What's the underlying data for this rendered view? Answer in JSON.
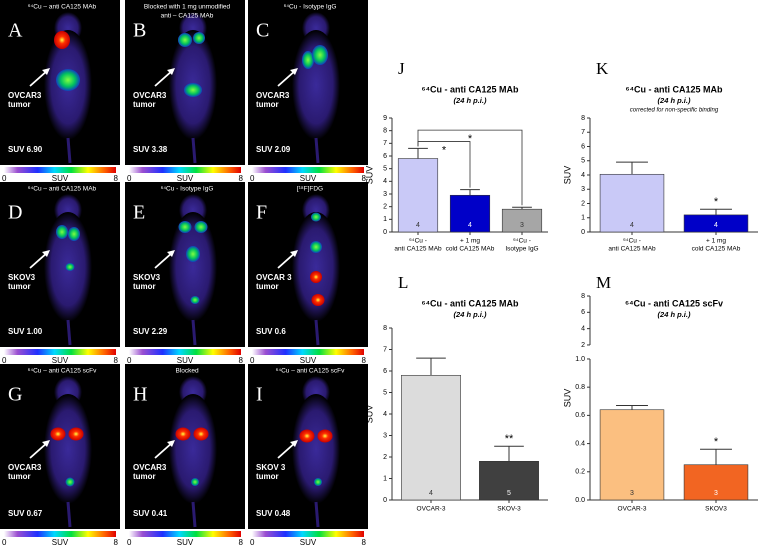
{
  "colorbar": {
    "min": 0,
    "label": "SUV",
    "max": 8
  },
  "panels": [
    {
      "letter": "A",
      "title": [
        "⁶⁴Cu – anti CA125 MAb"
      ],
      "tumor": [
        "OVCAR3",
        "tumor"
      ],
      "suv": "SUV 6.90"
    },
    {
      "letter": "B",
      "title": [
        "Blocked with 1 mg unmodified",
        "anti – CA125 MAb"
      ],
      "tumor": [
        "OVCAR3",
        "tumor"
      ],
      "suv": "SUV 3.38"
    },
    {
      "letter": "C",
      "title": [
        "⁶⁴Cu - Isotype IgG"
      ],
      "tumor": [
        "OVCAR3",
        "tumor"
      ],
      "suv": "SUV 2.09"
    },
    {
      "letter": "D",
      "title": [
        "⁶⁴Cu – anti CA125 MAb"
      ],
      "tumor": [
        "SKOV3",
        "tumor"
      ],
      "suv": "SUV 1.00"
    },
    {
      "letter": "E",
      "title": [
        "⁶⁴Cu - Isotype IgG"
      ],
      "tumor": [
        "SKOV3",
        "tumor"
      ],
      "suv": "SUV 2.29"
    },
    {
      "letter": "F",
      "title": [
        "[¹⁸F]FDG"
      ],
      "tumor": [
        "OVCAR 3",
        "tumor"
      ],
      "suv": "SUV 0.6"
    },
    {
      "letter": "G",
      "title": [
        "⁶⁴Cu – anti CA125 scFv"
      ],
      "tumor": [
        "OVCAR3",
        "tumor"
      ],
      "suv": "SUV 0.67"
    },
    {
      "letter": "H",
      "title": [
        "Blocked"
      ],
      "tumor": [
        "OVCAR3",
        "tumor"
      ],
      "suv": "SUV 0.41"
    },
    {
      "letter": "I",
      "title": [
        "⁶⁴Cu – anti CA125 scFv"
      ],
      "tumor": [
        "SKOV 3",
        "tumor"
      ],
      "suv": "SUV 0.48"
    }
  ],
  "chart_data": [
    {
      "type": "bar",
      "label": "J",
      "title": "⁶⁴Cu - anti CA125 MAb",
      "subtitle": "(24 h p.i.)",
      "y_label": "SUV",
      "categories": [
        [
          "⁶⁴Cu -",
          "anti CA125 MAb"
        ],
        [
          "+ 1 mg",
          "cold CA125 MAb"
        ],
        [
          "⁶⁴Cu -",
          "Isotype IgG"
        ]
      ],
      "values": [
        5.8,
        2.9,
        1.8
      ],
      "errors": [
        0.8,
        0.45,
        0.15
      ],
      "n": [
        4,
        4,
        3
      ],
      "colors": [
        "#c9c9f7",
        "#0000c8",
        "#a6a6a6"
      ],
      "ylim": [
        0,
        9
      ],
      "yticks": [
        0,
        1,
        2,
        3,
        4,
        5,
        6,
        7,
        8,
        9
      ],
      "annotations": [
        {
          "text": "*",
          "bars": [
            0,
            1
          ]
        },
        {
          "text": "*",
          "bars": [
            0,
            2
          ]
        }
      ]
    },
    {
      "type": "bar",
      "label": "K",
      "title": "⁶⁴Cu - anti CA125 MAb",
      "subtitle": "(24 h p.i.)",
      "note": "corrected for non-specific binding",
      "y_label": "SUV",
      "categories": [
        [
          "⁶⁴Cu -",
          "anti CA125 MAb"
        ],
        [
          "+ 1 mg",
          "cold CA125 MAb"
        ]
      ],
      "values": [
        4.05,
        1.2
      ],
      "errors": [
        0.85,
        0.4
      ],
      "n": [
        4,
        4
      ],
      "colors": [
        "#c9c9f7",
        "#0000c8"
      ],
      "ylim": [
        0,
        8
      ],
      "yticks": [
        0,
        1,
        2,
        3,
        4,
        5,
        6,
        7,
        8
      ],
      "annotations": [
        {
          "text": "*",
          "bars": [
            1
          ]
        }
      ]
    },
    {
      "type": "bar",
      "label": "L",
      "title": "⁶⁴Cu - anti CA125 MAb",
      "subtitle": "(24 h p.i.)",
      "y_label": "SUV",
      "categories": [
        [
          "OVCAR-3"
        ],
        [
          "SKOV-3"
        ]
      ],
      "values": [
        5.8,
        1.8
      ],
      "errors": [
        0.8,
        0.7
      ],
      "n": [
        4,
        5
      ],
      "colors": [
        "#dcdcdc",
        "#404040"
      ],
      "ylim": [
        0,
        8
      ],
      "yticks": [
        0,
        1,
        2,
        3,
        4,
        5,
        6,
        7,
        8
      ],
      "annotations": [
        {
          "text": "**",
          "bars": [
            1
          ]
        }
      ]
    },
    {
      "type": "broken-bar",
      "label": "M",
      "title": "⁶⁴Cu - anti CA125 scFv",
      "subtitle": "(24 h p.i.)",
      "y_label": "SUV",
      "categories": [
        [
          "OVCAR-3"
        ],
        [
          "SKOV3"
        ]
      ],
      "values": [
        0.64,
        0.25
      ],
      "errors": [
        0.03,
        0.11
      ],
      "n": [
        3,
        3
      ],
      "colors": [
        "#fbbf80",
        "#f26522"
      ],
      "ylim": [
        0,
        1
      ],
      "yticks": [
        {
          "value": 0,
          "label": "0.0"
        },
        0.2,
        0.4,
        0.6,
        0.8,
        {
          "value": 1,
          "label": "1.0"
        }
      ],
      "ylim_upper": [
        2,
        8
      ],
      "yticks_upper": [
        2,
        4,
        6,
        8
      ],
      "annotations": [
        {
          "text": "*",
          "bars": [
            1
          ]
        }
      ]
    }
  ]
}
